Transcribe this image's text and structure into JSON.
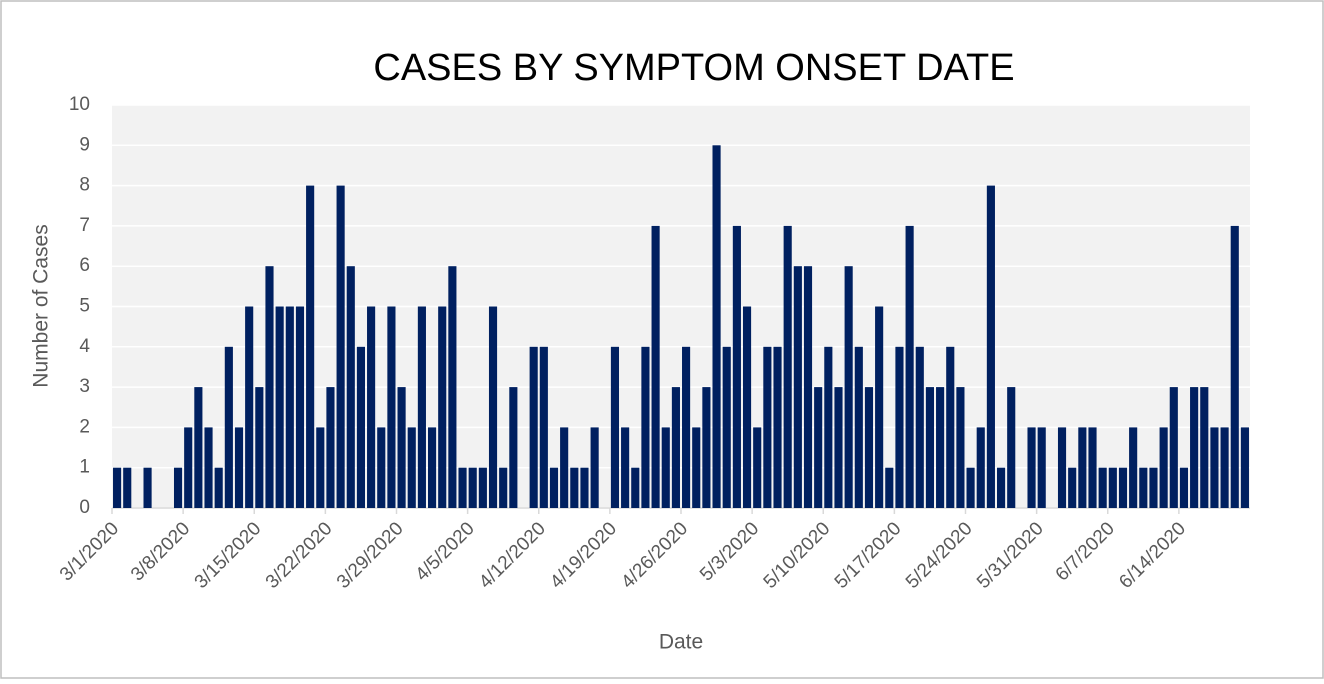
{
  "chart_data": {
    "type": "bar",
    "title": "CASES BY SYMPTOM ONSET DATE",
    "x_label": "Date",
    "y_label": "Number of Cases",
    "categories": [
      "3/1/2020",
      null,
      null,
      null,
      null,
      null,
      null,
      "3/8/2020",
      null,
      null,
      null,
      null,
      null,
      null,
      "3/15/2020",
      null,
      null,
      null,
      null,
      null,
      null,
      "3/22/2020",
      null,
      null,
      null,
      null,
      null,
      null,
      "3/29/2020",
      null,
      null,
      null,
      null,
      null,
      null,
      "4/5/2020",
      null,
      null,
      null,
      null,
      null,
      null,
      "4/12/2020",
      null,
      null,
      null,
      null,
      null,
      null,
      "4/19/2020",
      null,
      null,
      null,
      null,
      null,
      null,
      "4/26/2020",
      null,
      null,
      null,
      null,
      null,
      null,
      "5/3/2020",
      null,
      null,
      null,
      null,
      null,
      null,
      "5/10/2020",
      null,
      null,
      null,
      null,
      null,
      null,
      "5/17/2020",
      null,
      null,
      null,
      null,
      null,
      null,
      "5/24/2020",
      null,
      null,
      null,
      null,
      null,
      null,
      "5/31/2020",
      null,
      null,
      null,
      null,
      null,
      null,
      "6/7/2020",
      null,
      null,
      null,
      null,
      null,
      null,
      "6/14/2020",
      null,
      null,
      null,
      null,
      null,
      null
    ],
    "values": [
      1,
      1,
      0,
      1,
      0,
      0,
      1,
      2,
      3,
      2,
      1,
      4,
      2,
      5,
      3,
      6,
      5,
      5,
      5,
      8,
      2,
      3,
      8,
      6,
      4,
      5,
      2,
      5,
      3,
      2,
      5,
      2,
      5,
      6,
      1,
      1,
      1,
      5,
      1,
      3,
      0,
      4,
      4,
      1,
      2,
      1,
      1,
      2,
      0,
      4,
      2,
      1,
      4,
      7,
      2,
      3,
      4,
      2,
      3,
      9,
      4,
      7,
      5,
      2,
      4,
      4,
      7,
      6,
      6,
      3,
      4,
      3,
      6,
      4,
      3,
      5,
      1,
      4,
      7,
      4,
      3,
      3,
      4,
      3,
      1,
      2,
      8,
      1,
      3,
      0,
      2,
      2,
      0,
      2,
      1,
      2,
      2,
      1,
      1,
      1,
      2,
      1,
      1,
      2,
      3,
      1,
      3,
      3,
      2,
      2,
      7,
      2
    ],
    "color": "#002060",
    "ylim": [
      0,
      10
    ],
    "yticks": [
      0,
      1,
      2,
      3,
      4,
      5,
      6,
      7,
      8,
      9,
      10
    ],
    "grid": true
  }
}
